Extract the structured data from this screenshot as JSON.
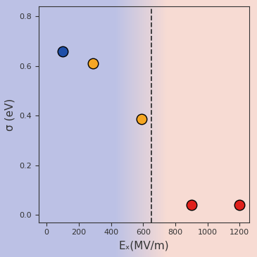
{
  "chart_data": {
    "type": "scatter",
    "x_label": "Eₓ(MV/m)",
    "y_label": "σ (eV)",
    "series": [
      {
        "color": "#1f4fa8",
        "marker": "o",
        "x": [
          100
        ],
        "values": [
          0.66
        ]
      },
      {
        "color": "#f5a623",
        "marker": "o",
        "x": [
          290,
          590
        ],
        "values": [
          0.61,
          0.385
        ]
      },
      {
        "color": "#e0201b",
        "marker": "o",
        "x": [
          900,
          1200
        ],
        "values": [
          0.04,
          0.04
        ]
      }
    ],
    "dashed_line_x": 650,
    "xlim": [
      -50,
      1260
    ],
    "xticks": [
      0,
      200,
      400,
      600,
      800,
      1000,
      1200
    ],
    "ylim": [
      -0.03,
      0.84
    ],
    "yticks": [
      0.0,
      0.2,
      0.4,
      0.6,
      0.8
    ],
    "grid": false
  }
}
